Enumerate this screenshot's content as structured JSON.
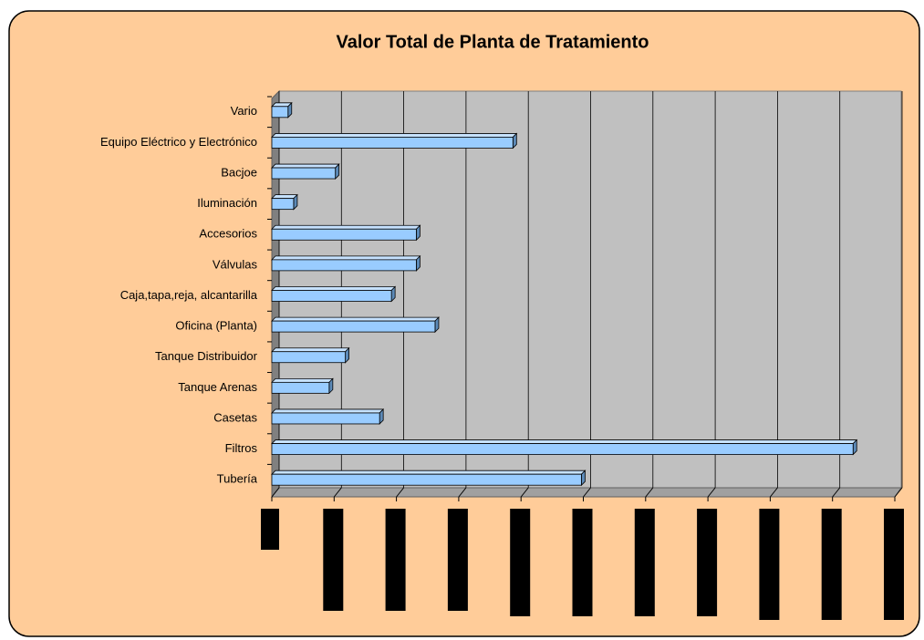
{
  "chart_data": {
    "type": "bar",
    "orientation": "horizontal",
    "title": "Valor Total de Planta de Tratamiento",
    "categories": [
      "Vario",
      "Equipo Eléctrico y Electrónico",
      "Bacjoe",
      "Iluminación",
      "Accesorios",
      "Válvulas",
      "Caja,tapa,reja, alcantarilla",
      "Oficina (Planta)",
      "Tanque Distribuidor",
      "Tanque Arenas",
      "Casetas",
      "Filtros",
      "Tubería"
    ],
    "values": [
      0.26,
      3.87,
      1.02,
      0.35,
      2.32,
      2.32,
      1.92,
      2.62,
      1.18,
      0.92,
      1.73,
      9.33,
      4.97
    ],
    "color": "#99ccff",
    "xlim": [
      0,
      10
    ],
    "xticks": [
      0,
      1,
      2,
      3,
      4,
      5,
      6,
      7,
      8,
      9,
      10
    ],
    "grid": true
  }
}
